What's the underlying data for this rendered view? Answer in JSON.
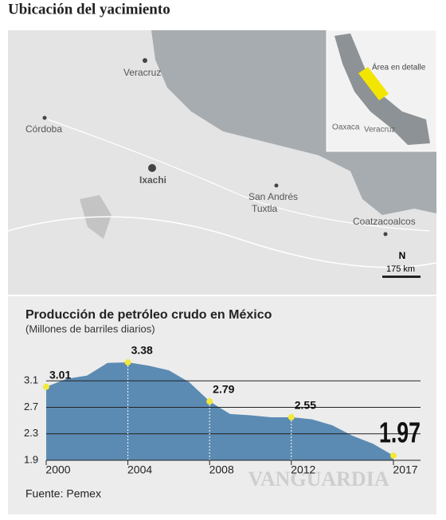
{
  "title": "Ubicación del yacimiento",
  "map": {
    "labels": [
      "Veracruz",
      "Córdoba",
      "Ixachi",
      "San Andrés",
      "Tuxtla",
      "Coatzacoalcos"
    ],
    "inset": [
      "Área en detalle",
      "Oaxaca",
      "Veracruz"
    ],
    "north": "N",
    "scale": "175 km"
  },
  "chart_data": {
    "type": "area",
    "title": "Producción de petróleo crudo en México",
    "subtitle": "(Millones de barriles diarios)",
    "x": [
      2000,
      2001,
      2002,
      2003,
      2004,
      2005,
      2006,
      2007,
      2008,
      2009,
      2010,
      2011,
      2012,
      2013,
      2014,
      2015,
      2016,
      2017
    ],
    "values": [
      3.01,
      3.13,
      3.18,
      3.37,
      3.38,
      3.33,
      3.26,
      3.08,
      2.79,
      2.6,
      2.58,
      2.55,
      2.55,
      2.52,
      2.43,
      2.27,
      2.15,
      1.97
    ],
    "color": "#5b8bb3",
    "marker_color": "#f2e93a",
    "xlim": [
      2000,
      2017
    ],
    "xticks": [
      2000,
      2004,
      2008,
      2012,
      2017
    ],
    "ylim": [
      1.9,
      3.5
    ],
    "yticks": [
      1.9,
      2.3,
      2.7,
      3.1
    ],
    "grid": true
  },
  "source": "Fuente: Pemex",
  "watermark": "VANGUARDIA"
}
